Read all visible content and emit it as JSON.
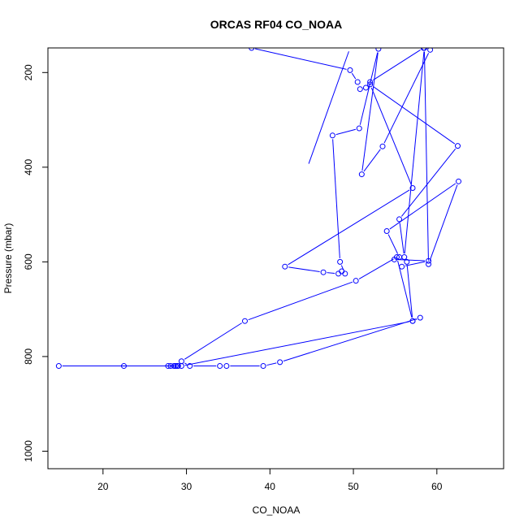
{
  "chart_data": {
    "type": "line",
    "title": "ORCAS RF04 CO_NOAA",
    "xlabel": "CO_NOAA",
    "ylabel": "Pressure (mbar)",
    "xlim": [
      13.4,
      68.0
    ],
    "ylim": [
      1037,
      148
    ],
    "y_reversed": true,
    "x_ticks": [
      20,
      30,
      40,
      50,
      60
    ],
    "y_ticks": [
      200,
      400,
      600,
      800,
      1000
    ],
    "grid": false,
    "legend": "none",
    "series_color": "#0000ff",
    "series": [
      {
        "x": [
          49.6,
          44.5
        ],
        "y": [
          148,
          400
        ],
        "clip": true
      },
      {
        "x": [
          37.8,
          49.6,
          50.5,
          50.8,
          51.5,
          52.0,
          58.4,
          59.2,
          53.5,
          51.0,
          53.0,
          50.7,
          47.5,
          48.4,
          49.0,
          48.6,
          48.2,
          46.4,
          41.8,
          57.1,
          52.0,
          62.5,
          55.5,
          56.1,
          58.5,
          59.0,
          62.6,
          54.0,
          55.5,
          54.9,
          59.0,
          55.8,
          56.4,
          57.1,
          58.0,
          41.2,
          39.2,
          34.8,
          34.0,
          30.4,
          29.4,
          37.0,
          50.3,
          55.2,
          57.1,
          29.4,
          28.9,
          28.7,
          28.5,
          28.1,
          27.8,
          22.5,
          14.7,
          29.0,
          28.7
        ],
        "y": [
          148,
          195,
          220,
          235,
          232,
          220,
          148,
          152,
          356,
          415,
          150,
          318,
          333,
          600,
          625,
          620,
          625,
          622,
          610,
          444,
          225,
          355,
          510,
          590,
          148,
          605,
          430,
          535,
          590,
          595,
          598,
          610,
          600,
          725,
          718,
          812,
          820,
          820,
          820,
          820,
          810,
          725,
          640,
          590,
          725,
          820,
          820,
          820,
          820,
          820,
          820,
          820,
          820,
          820,
          820
        ]
      }
    ]
  }
}
